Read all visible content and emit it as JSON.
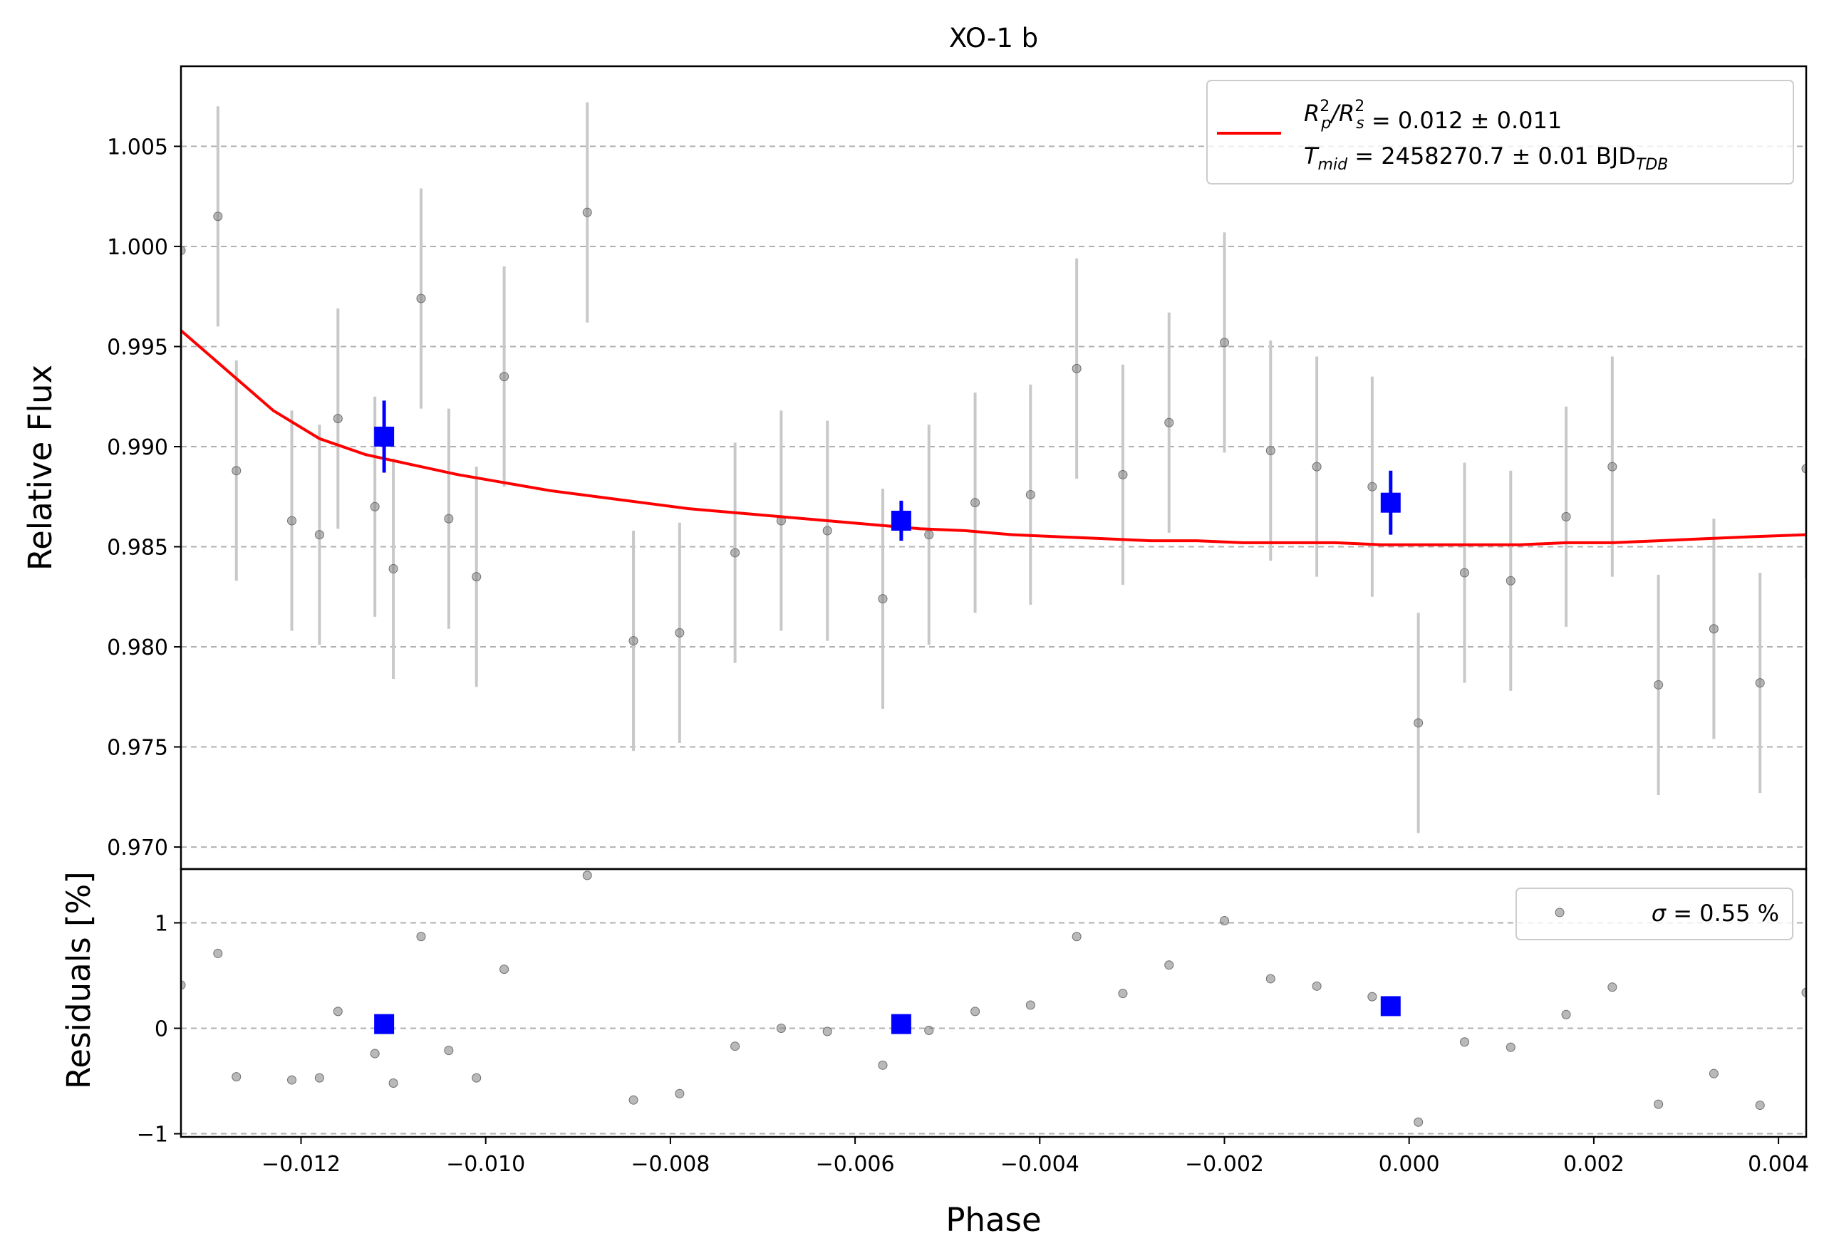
{
  "chart_data": [
    {
      "type": "scatter",
      "panel": "main",
      "title": "XO-1 b",
      "xlabel": "",
      "ylabel": "Relative Flux",
      "xlim": [
        -0.0133,
        0.0043
      ],
      "ylim": [
        0.9689,
        1.009
      ],
      "grid": "horizontal dashed",
      "legend_position": "top-right",
      "yticks": [
        0.97,
        0.975,
        0.98,
        0.985,
        0.99,
        0.995,
        1.0,
        1.005
      ],
      "ytick_labels": [
        "0.970",
        "0.975",
        "0.980",
        "0.985",
        "0.990",
        "0.995",
        "1.000",
        "1.005"
      ],
      "legend": {
        "model_line": {
          "line1": {
            "main": "R",
            "sup1": "2",
            "sub1": "p",
            "mid": "/R",
            "sup2": "2",
            "sub2": "s",
            "rest": " = 0.012 ± 0.011"
          },
          "line2": {
            "main": "T",
            "sub1": "mid",
            "rest": " = 2458270.7 ± 0.01 BJD",
            "sub2": "TDB"
          }
        }
      },
      "series": [
        {
          "role": "data",
          "color": "#808080",
          "errorbar_color": "#c8c8c8",
          "x": [
            -0.0133,
            -0.0129,
            -0.0127,
            -0.0121,
            -0.0118,
            -0.0116,
            -0.0112,
            -0.011,
            -0.0107,
            -0.0104,
            -0.0101,
            -0.0098,
            -0.0089,
            -0.0084,
            -0.0079,
            -0.0073,
            -0.0068,
            -0.0063,
            -0.0057,
            -0.0052,
            -0.0047,
            -0.0041,
            -0.0036,
            -0.0031,
            -0.0026,
            -0.002,
            -0.0015,
            -0.001,
            -0.0004,
            0.0001,
            0.0006,
            0.0011,
            0.0017,
            0.0022,
            0.0027,
            0.0033,
            0.0038,
            0.0043
          ],
          "y": [
            0.9998,
            1.0015,
            0.9888,
            0.9863,
            0.9856,
            0.9914,
            0.987,
            0.9839,
            0.9974,
            0.9864,
            0.9835,
            0.9935,
            1.0017,
            0.9803,
            0.9807,
            0.9847,
            0.9863,
            0.9858,
            0.9824,
            0.9856,
            0.9872,
            0.9876,
            0.9939,
            0.9886,
            0.9912,
            0.9952,
            0.9898,
            0.989,
            0.988,
            0.9762,
            0.9837,
            0.9833,
            0.9865,
            0.989,
            0.9781,
            0.9809,
            0.9782,
            0.9889
          ],
          "yerr": [
            0.0055,
            0.0055,
            0.0055,
            0.0055,
            0.0055,
            0.0055,
            0.0055,
            0.0055,
            0.0055,
            0.0055,
            0.0055,
            0.0055,
            0.0055,
            0.0055,
            0.0055,
            0.0055,
            0.0055,
            0.0055,
            0.0055,
            0.0055,
            0.0055,
            0.0055,
            0.0055,
            0.0055,
            0.0055,
            0.0055,
            0.0055,
            0.0055,
            0.0055,
            0.0055,
            0.0055,
            0.0055,
            0.0055,
            0.0055,
            0.0055,
            0.0055,
            0.0055,
            0.0055
          ]
        },
        {
          "role": "binned",
          "color": "#0000ff",
          "x": [
            -0.0111,
            -0.0055,
            -0.0002
          ],
          "y": [
            0.9905,
            0.9863,
            0.9872
          ],
          "yerr": [
            0.0018,
            0.001,
            0.0016
          ]
        },
        {
          "role": "model",
          "color": "#ff0000",
          "x": [
            -0.0133,
            -0.0128,
            -0.0123,
            -0.0118,
            -0.0113,
            -0.0108,
            -0.0103,
            -0.0098,
            -0.0093,
            -0.0088,
            -0.0083,
            -0.0078,
            -0.0073,
            -0.0068,
            -0.0063,
            -0.0058,
            -0.0053,
            -0.0048,
            -0.0043,
            -0.0038,
            -0.0033,
            -0.0028,
            -0.0023,
            -0.0018,
            -0.0013,
            -0.0008,
            -0.0003,
            0.0002,
            0.0007,
            0.0012,
            0.0017,
            0.0022,
            0.0027,
            0.0032,
            0.0037,
            0.0043
          ],
          "y": [
            0.9958,
            0.9938,
            0.9918,
            0.9904,
            0.9896,
            0.9891,
            0.9886,
            0.9882,
            0.9878,
            0.9875,
            0.9872,
            0.9869,
            0.9867,
            0.9865,
            0.9863,
            0.9861,
            0.9859,
            0.9858,
            0.9856,
            0.9855,
            0.9854,
            0.9853,
            0.9853,
            0.9852,
            0.9852,
            0.9852,
            0.9851,
            0.9851,
            0.9851,
            0.9851,
            0.9852,
            0.9852,
            0.9853,
            0.9854,
            0.9855,
            0.9856
          ]
        }
      ]
    },
    {
      "type": "scatter",
      "panel": "residuals",
      "title": "",
      "xlabel": "Phase",
      "ylabel": "Residuals [%]",
      "xlim": [
        -0.0133,
        0.0043
      ],
      "ylim": [
        -1.03,
        1.51
      ],
      "grid": "horizontal dashed",
      "legend_position": "top-right",
      "xticks": [
        -0.012,
        -0.01,
        -0.008,
        -0.006,
        -0.004,
        -0.002,
        0.0,
        0.002,
        0.004
      ],
      "xtick_labels": [
        "−0.012",
        "−0.010",
        "−0.008",
        "−0.006",
        "−0.004",
        "−0.002",
        "0.000",
        "0.002",
        "0.004"
      ],
      "yticks": [
        -1,
        0,
        1
      ],
      "ytick_labels": [
        "−1",
        "0",
        "1"
      ],
      "legend": {
        "sigma": {
          "symbol": "σ",
          "rest": " = 0.55 %"
        }
      },
      "series": [
        {
          "role": "residuals",
          "color": "#808080",
          "x": [
            -0.0133,
            -0.0129,
            -0.0127,
            -0.0121,
            -0.0118,
            -0.0116,
            -0.0112,
            -0.011,
            -0.0107,
            -0.0104,
            -0.0101,
            -0.0098,
            -0.0089,
            -0.0084,
            -0.0079,
            -0.0073,
            -0.0068,
            -0.0063,
            -0.0057,
            -0.0052,
            -0.0047,
            -0.0041,
            -0.0036,
            -0.0031,
            -0.0026,
            -0.002,
            -0.0015,
            -0.001,
            -0.0004,
            0.0001,
            0.0006,
            0.0011,
            0.0017,
            0.0022,
            0.0027,
            0.0033,
            0.0038,
            0.0043
          ],
          "y": [
            0.41,
            0.71,
            -0.46,
            -0.49,
            -0.47,
            0.16,
            -0.24,
            -0.52,
            0.87,
            -0.21,
            -0.47,
            0.56,
            1.45,
            -0.68,
            -0.62,
            -0.17,
            0.0,
            -0.03,
            -0.35,
            -0.02,
            0.16,
            0.22,
            0.87,
            0.33,
            0.6,
            1.02,
            0.47,
            0.4,
            0.3,
            -0.89,
            -0.13,
            -0.18,
            0.13,
            0.39,
            -0.72,
            -0.43,
            -0.73,
            0.34
          ]
        },
        {
          "role": "binned",
          "color": "#0000ff",
          "x": [
            -0.0111,
            -0.0055,
            -0.0002
          ],
          "y": [
            0.04,
            0.04,
            0.21
          ]
        }
      ]
    }
  ]
}
